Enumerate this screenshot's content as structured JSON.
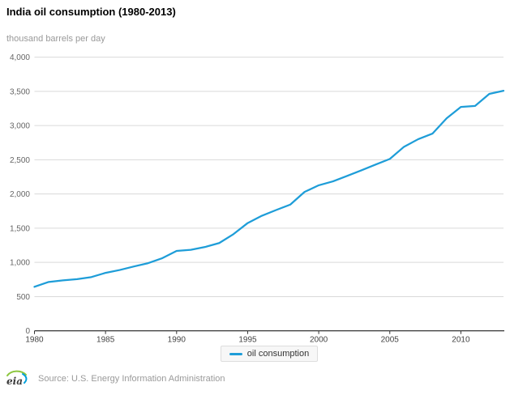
{
  "header": {
    "title": "India oil consumption (1980-2013)",
    "subtitle": "thousand barrels per day"
  },
  "chart_data": {
    "type": "line",
    "title": "India oil consumption (1980-2013)",
    "ylabel": "thousand barrels per day",
    "xlabel": "",
    "x": [
      1980,
      1981,
      1982,
      1983,
      1984,
      1985,
      1986,
      1987,
      1988,
      1989,
      1990,
      1991,
      1992,
      1993,
      1994,
      1995,
      1996,
      1997,
      1998,
      1999,
      2000,
      2001,
      2002,
      2003,
      2004,
      2005,
      2006,
      2007,
      2008,
      2009,
      2010,
      2011,
      2012,
      2013
    ],
    "series": [
      {
        "name": "oil consumption",
        "color": "#1e9dd8",
        "values": [
          643,
          714,
          738,
          755,
          785,
          847,
          889,
          941,
          989,
          1062,
          1168,
          1184,
          1225,
          1283,
          1413,
          1575,
          1682,
          1765,
          1845,
          2030,
          2127,
          2184,
          2264,
          2346,
          2430,
          2512,
          2690,
          2801,
          2882,
          3107,
          3272,
          3287,
          3463,
          3509
        ]
      }
    ],
    "ylim": [
      0,
      4000
    ],
    "yticks": [
      0,
      500,
      1000,
      1500,
      2000,
      2500,
      3000,
      3500,
      4000
    ],
    "ytick_labels": [
      "0",
      "500",
      "1,000",
      "1,500",
      "2,000",
      "2,500",
      "3,000",
      "3,500",
      "4,000"
    ],
    "xticks": [
      1980,
      1985,
      1990,
      1995,
      2000,
      2005,
      2010
    ],
    "grid": true,
    "legend_position": "bottom",
    "colors": {
      "line": "#1e9dd8",
      "gridline": "#d9d9d9",
      "axis": "#000000",
      "ytick_label": "#666666",
      "xtick_label": "#444444"
    }
  },
  "legend": {
    "items": [
      {
        "label": "oil consumption",
        "color": "#1e9dd8"
      }
    ]
  },
  "footer": {
    "logo_text": "eia",
    "source": "Source: U.S. Energy Information Administration"
  }
}
